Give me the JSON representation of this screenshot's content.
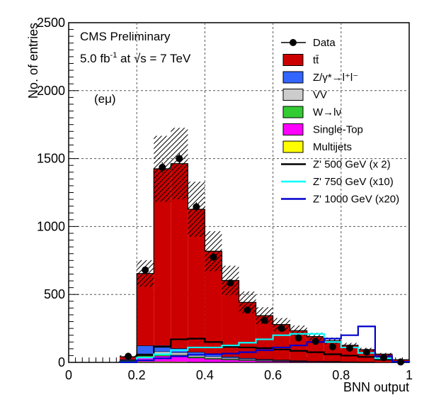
{
  "chart_data": {
    "type": "histogram",
    "title": "",
    "xlabel": "BNN output",
    "ylabel": "No. of entries",
    "xlim": [
      0,
      1
    ],
    "ylim": [
      0,
      2500
    ],
    "x_ticks": [
      0,
      0.2,
      0.4,
      0.6,
      0.8,
      1
    ],
    "x_tick_labels": [
      "0",
      "0.2",
      "0.4",
      "0.6",
      "0.8",
      "1"
    ],
    "y_ticks": [
      0,
      500,
      1000,
      1500,
      2000,
      2500
    ],
    "y_tick_labels": [
      "0",
      "500",
      "1000",
      "1500",
      "2000",
      "2500"
    ],
    "bin_edges": [
      0.15,
      0.2,
      0.25,
      0.3,
      0.35,
      0.4,
      0.45,
      0.5,
      0.55,
      0.6,
      0.65,
      0.7,
      0.75,
      0.8,
      0.85,
      0.9,
      0.95,
      1.0
    ],
    "annotations": {
      "experiment": "CMS Preliminary",
      "lumi_prefix": "5.0 fb",
      "lumi_sup": "-1",
      "lumi_mid": " at ",
      "lumi_sqrt": "√s",
      "lumi_suffix": " = 7 TeV",
      "channel": "(eμ)"
    },
    "stack": [
      {
        "name": "Multijets",
        "legend": "Multijets",
        "color": "#ffff00",
        "values": [
          2,
          5,
          6,
          5,
          4,
          3,
          3,
          2,
          2,
          2,
          1,
          1,
          1,
          1,
          0,
          0,
          0
        ]
      },
      {
        "name": "Single-Top",
        "legend": "Single-Top",
        "color": "#ff00ff",
        "values": [
          8,
          32,
          42,
          40,
          30,
          22,
          16,
          12,
          9,
          7,
          5,
          4,
          3,
          2,
          1,
          1,
          0
        ]
      },
      {
        "name": "W->lv",
        "legend": "W→lν",
        "color": "#33cc33",
        "values": [
          3,
          12,
          12,
          10,
          8,
          6,
          5,
          4,
          3,
          2,
          2,
          1,
          1,
          1,
          1,
          0,
          0
        ]
      },
      {
        "name": "VV",
        "legend": "VV",
        "color": "#cccccc",
        "values": [
          4,
          15,
          20,
          18,
          15,
          12,
          9,
          7,
          5,
          4,
          3,
          2,
          2,
          1,
          1,
          0,
          0
        ]
      },
      {
        "name": "Z/gamma*->ll",
        "legend": "Z/γ*→l⁺l⁻",
        "color": "#3366ff",
        "values": [
          5,
          60,
          45,
          30,
          20,
          15,
          10,
          7,
          5,
          4,
          3,
          2,
          2,
          1,
          1,
          0,
          0
        ]
      },
      {
        "name": "ttbar",
        "legend": "tt̄",
        "color": "#cc0000",
        "values": [
          20,
          530,
          1300,
          1360,
          1050,
          760,
          560,
          410,
          320,
          260,
          220,
          180,
          150,
          120,
          90,
          60,
          20
        ]
      }
    ],
    "uncertainty": {
      "legend": "",
      "relative": [
        0.25,
        0.15,
        0.17,
        0.18,
        0.18,
        0.18,
        0.18,
        0.18,
        0.18,
        0.17,
        0.16,
        0.15,
        0.15,
        0.14,
        0.14,
        0.14,
        0.14
      ]
    },
    "data": {
      "legend": "Data",
      "x": [
        0.175,
        0.225,
        0.275,
        0.325,
        0.375,
        0.425,
        0.475,
        0.525,
        0.575,
        0.625,
        0.675,
        0.725,
        0.775,
        0.825,
        0.875,
        0.925,
        0.975
      ],
      "y": [
        45,
        680,
        1435,
        1500,
        1145,
        775,
        585,
        385,
        310,
        250,
        180,
        155,
        115,
        105,
        75,
        35,
        3
      ]
    },
    "signals": [
      {
        "name": "Z' 500 GeV",
        "legend": "Z'  500 GeV (x 2)",
        "color": "#000000",
        "values": [
          4,
          55,
          115,
          170,
          175,
          150,
          115,
          110,
          105,
          95,
          85,
          75,
          60,
          50,
          40,
          20,
          5
        ]
      },
      {
        "name": "Z' 750 GeV",
        "legend": "Z'  750 GeV (x10)",
        "color": "#00ffff",
        "values": [
          2,
          35,
          60,
          90,
          110,
          110,
          125,
          145,
          170,
          200,
          210,
          210,
          150,
          110,
          70,
          30,
          5
        ]
      },
      {
        "name": "Z' 1000 GeV",
        "legend": "Z'  1000 GeV (x20)",
        "color": "#0000cc",
        "values": [
          1,
          15,
          30,
          45,
          55,
          60,
          65,
          75,
          90,
          110,
          125,
          150,
          175,
          200,
          265,
          45,
          5
        ]
      }
    ]
  }
}
